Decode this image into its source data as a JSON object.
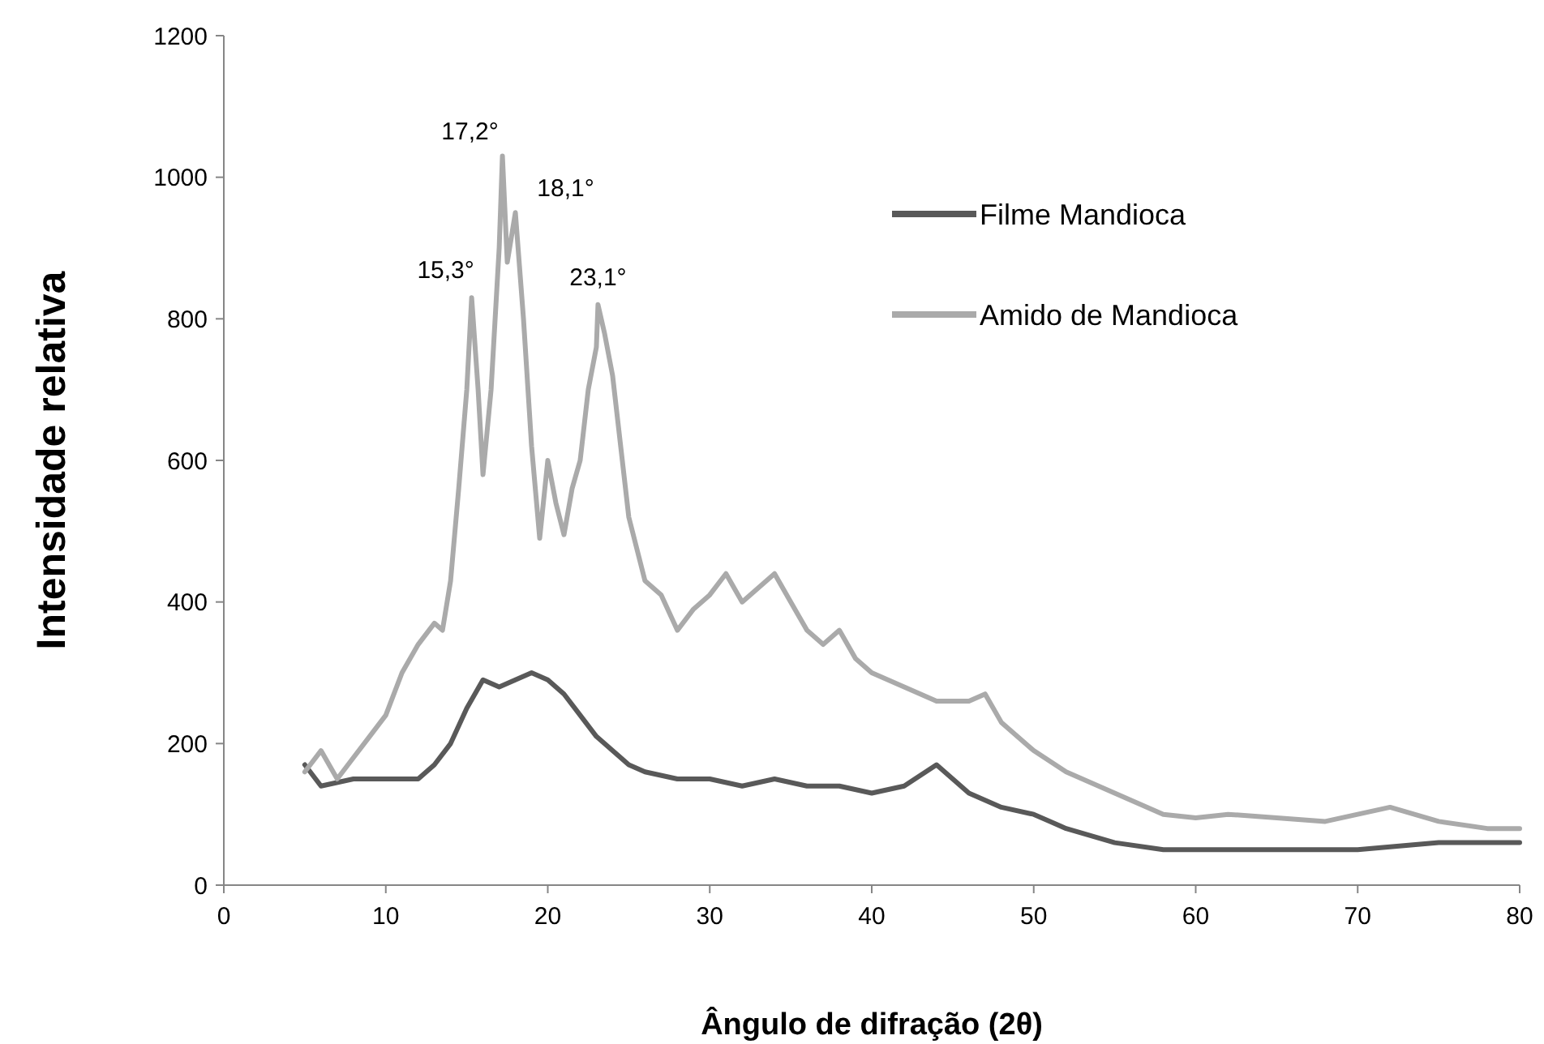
{
  "chart_data": {
    "type": "line",
    "xlabel": "Ângulo de difração (2θ)",
    "ylabel": "Intensidade relativa",
    "xlim": [
      0,
      80
    ],
    "xticks": [
      0,
      10,
      20,
      30,
      40,
      50,
      60,
      70,
      80
    ],
    "ylim": [
      0,
      1200
    ],
    "yticks": [
      0,
      200,
      400,
      600,
      800,
      1000,
      1200
    ],
    "grid": false,
    "legend": "top right",
    "marker": "none",
    "line_style": "solid",
    "series": [
      {
        "name": "Filme Mandioca",
        "color": "#595959",
        "x": [
          5,
          6,
          8,
          10,
          12,
          13,
          14,
          15,
          16,
          17,
          18,
          19,
          20,
          21,
          22,
          23,
          24,
          25,
          26,
          28,
          30,
          32,
          34,
          36,
          38,
          40,
          42,
          44,
          45,
          46,
          48,
          50,
          52,
          55,
          58,
          60,
          65,
          70,
          75,
          80
        ],
        "values": [
          170,
          140,
          150,
          150,
          150,
          170,
          200,
          250,
          290,
          280,
          290,
          300,
          290,
          270,
          240,
          210,
          190,
          170,
          160,
          150,
          150,
          140,
          150,
          140,
          140,
          130,
          140,
          170,
          150,
          130,
          110,
          100,
          80,
          60,
          50,
          50,
          50,
          50,
          60,
          60
        ]
      },
      {
        "name": "Amido de Mandioca",
        "color": "#aaaaaa",
        "x": [
          5,
          6,
          7,
          8,
          9,
          10,
          11,
          12,
          13,
          13.5,
          14,
          14.5,
          15,
          15.3,
          15.7,
          16,
          16.5,
          17,
          17.2,
          17.5,
          18,
          18.1,
          18.5,
          19,
          19.5,
          20,
          20.5,
          21,
          21.5,
          22,
          22.5,
          23,
          23.1,
          23.5,
          24,
          25,
          26,
          27,
          28,
          29,
          30,
          31,
          32,
          33,
          34,
          35,
          36,
          37,
          38,
          39,
          40,
          42,
          44,
          46,
          47,
          48,
          50,
          52,
          54,
          56,
          58,
          60,
          62,
          65,
          68,
          70,
          72,
          75,
          78,
          80
        ],
        "values": [
          160,
          190,
          150,
          180,
          210,
          240,
          300,
          340,
          370,
          360,
          430,
          560,
          700,
          830,
          700,
          580,
          700,
          900,
          1030,
          880,
          950,
          920,
          800,
          620,
          490,
          600,
          540,
          495,
          560,
          600,
          700,
          760,
          820,
          780,
          720,
          520,
          430,
          410,
          360,
          390,
          410,
          440,
          400,
          420,
          440,
          400,
          360,
          340,
          360,
          320,
          300,
          280,
          260,
          260,
          270,
          230,
          190,
          160,
          140,
          120,
          100,
          95,
          100,
          95,
          90,
          100,
          110,
          90,
          80,
          80
        ]
      }
    ],
    "annotations": [
      {
        "text": "15,3°",
        "x": 15.3,
        "y": 830
      },
      {
        "text": "17,2°",
        "x": 17.2,
        "y": 1030
      },
      {
        "text": "18,1°",
        "x": 18.1,
        "y": 950
      },
      {
        "text": "23,1°",
        "x": 23.1,
        "y": 820
      }
    ]
  }
}
